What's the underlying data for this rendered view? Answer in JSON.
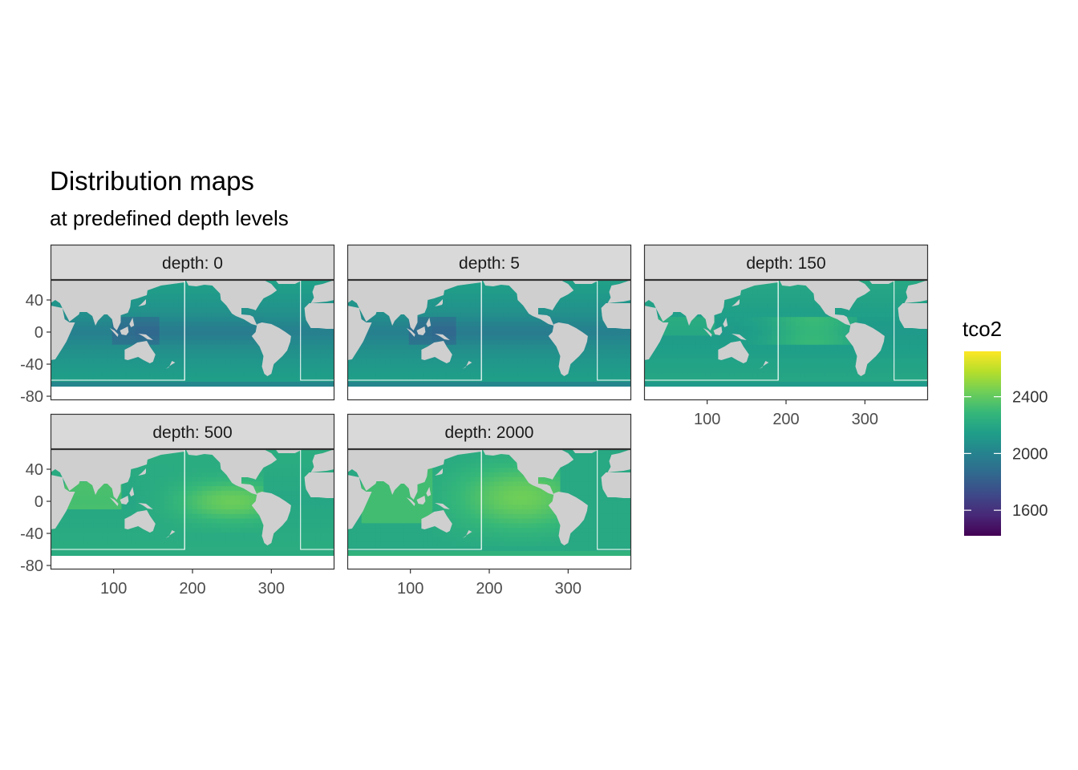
{
  "chart_data": {
    "type": "heatmap",
    "title": "Distribution maps",
    "subtitle": "at predefined depth levels",
    "variable": "tco2",
    "facet_variable": "depth",
    "panels": [
      {
        "label": "depth: 0",
        "depth": 0,
        "ocean_mean": 2020,
        "pattern": "surface"
      },
      {
        "label": "depth: 5",
        "depth": 5,
        "ocean_mean": 2020,
        "pattern": "surface"
      },
      {
        "label": "depth: 150",
        "depth": 150,
        "ocean_mean": 2120,
        "pattern": "subsurface"
      },
      {
        "label": "depth: 500",
        "depth": 500,
        "ocean_mean": 2220,
        "pattern": "intermediate"
      },
      {
        "label": "depth: 2000",
        "depth": 2000,
        "ocean_mean": 2260,
        "pattern": "deep"
      }
    ],
    "x_axis": {
      "limits": [
        20,
        380
      ],
      "ticks": [
        100,
        200,
        300
      ],
      "tick_labels": [
        "100",
        "200",
        "300"
      ]
    },
    "y_axis": {
      "limits": [
        -85,
        65
      ],
      "ticks": [
        40,
        0,
        -40,
        -80
      ],
      "tick_labels": [
        "40",
        "0",
        "-40",
        "-80"
      ]
    },
    "legend": {
      "title": "tco2",
      "position": "right",
      "limits": [
        1420,
        2720
      ],
      "breaks": [
        2400,
        2000,
        1600
      ],
      "break_labels": [
        "2400",
        "2000",
        "1600"
      ],
      "palette": "viridis",
      "colors": [
        "#440154",
        "#482878",
        "#3e4989",
        "#31688e",
        "#26828e",
        "#1f9e89",
        "#35b779",
        "#6ece58",
        "#b5de2b",
        "#fde725"
      ]
    },
    "grid": false,
    "land_color": "#cfcfcf",
    "strip_fill": "#d9d9d9",
    "frame_color": "#333333",
    "region_box_color": "#ffffff"
  }
}
